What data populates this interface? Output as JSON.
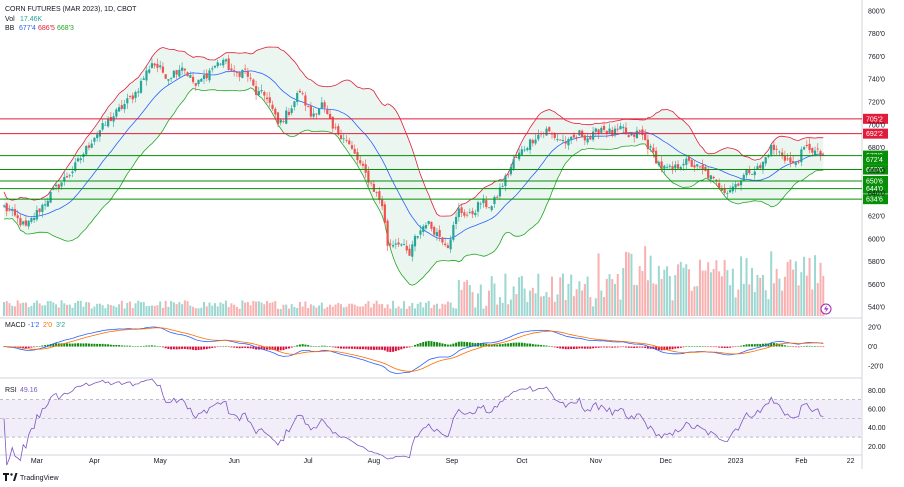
{
  "header": {
    "title": "CORN FUTURES (MAR 2023), 1D, CBOT",
    "vol_label": "Vol",
    "vol_value": "17.46K",
    "bb_label": "BB",
    "bb_values": [
      "677'4",
      "686'5",
      "668'3"
    ]
  },
  "macd": {
    "label": "MACD",
    "values": [
      "-1'2",
      "2'0",
      "3'2"
    ]
  },
  "rsi": {
    "label": "RSI",
    "value": "49.16"
  },
  "branding": {
    "logo_text": "TradingView"
  },
  "colors": {
    "up": "#26a69a",
    "down": "#ef5350",
    "bb_upper": "#e0203c",
    "bb_lower": "#23a623",
    "bb_basis": "#2962ff",
    "bb_fill": "#e6f4ee",
    "support": "#078f07",
    "resistance": "#e31b3a",
    "macd_line": "#2962ff",
    "signal_line": "#ff6d00",
    "rsi_line": "#7e57c2"
  },
  "chart_data": {
    "type": "candlestick",
    "symbol": "CORN FUTURES (MAR 2023)",
    "interval": "1D",
    "x_ticks": [
      "Mar",
      "Apr",
      "May",
      "Jun",
      "Jul",
      "Aug",
      "Sep",
      "Oct",
      "Nov",
      "Dec",
      "2023",
      "Feb",
      "22"
    ],
    "price_axis_ticks": [
      "800'0",
      "780'0",
      "760'0",
      "740'0",
      "720'0",
      "700'0",
      "680'0",
      "660'0",
      "640'0",
      "620'0",
      "600'0",
      "580'0",
      "560'0",
      "540'0"
    ],
    "ylim": [
      534,
      806
    ],
    "price_range": [
      565,
      775
    ],
    "current_price": "672'4",
    "horizontal_levels": [
      {
        "label": "705'2",
        "value": 705.25,
        "kind": "resistance"
      },
      {
        "label": "692'2",
        "value": 692.25,
        "kind": "resistance"
      },
      {
        "label": "673'0",
        "value": 673.0,
        "kind": "support"
      },
      {
        "label": "660'6",
        "value": 660.75,
        "kind": "support"
      },
      {
        "label": "650'6",
        "value": 650.75,
        "kind": "support"
      },
      {
        "label": "644'0",
        "value": 644.0,
        "kind": "support"
      },
      {
        "label": "634'6",
        "value": 634.75,
        "kind": "support"
      }
    ],
    "close_path": [
      [
        0,
        628
      ],
      [
        8,
        610
      ],
      [
        18,
        642
      ],
      [
        25,
        660
      ],
      [
        33,
        690
      ],
      [
        40,
        708
      ],
      [
        48,
        728
      ],
      [
        54,
        755
      ],
      [
        60,
        742
      ],
      [
        65,
        752
      ],
      [
        70,
        734
      ],
      [
        76,
        750
      ],
      [
        80,
        757
      ],
      [
        84,
        744
      ],
      [
        88,
        748
      ],
      [
        92,
        728
      ],
      [
        96,
        725
      ],
      [
        100,
        700
      ],
      [
        104,
        712
      ],
      [
        108,
        730
      ],
      [
        112,
        708
      ],
      [
        116,
        718
      ],
      [
        120,
        696
      ],
      [
        124,
        690
      ],
      [
        130,
        665
      ],
      [
        134,
        648
      ],
      [
        138,
        630
      ],
      [
        140,
        595
      ],
      [
        144,
        598
      ],
      [
        148,
        585
      ],
      [
        150,
        600
      ],
      [
        154,
        615
      ],
      [
        158,
        605
      ],
      [
        162,
        595
      ],
      [
        166,
        625
      ],
      [
        170,
        620
      ],
      [
        174,
        632
      ],
      [
        178,
        628
      ],
      [
        182,
        648
      ],
      [
        186,
        668
      ],
      [
        190,
        680
      ],
      [
        194,
        690
      ],
      [
        198,
        695
      ],
      [
        202,
        688
      ],
      [
        206,
        684
      ],
      [
        210,
        692
      ],
      [
        214,
        688
      ],
      [
        218,
        698
      ],
      [
        222,
        692
      ],
      [
        226,
        696
      ],
      [
        228,
        688
      ],
      [
        232,
        694
      ],
      [
        236,
        678
      ],
      [
        240,
        662
      ],
      [
        244,
        660
      ],
      [
        248,
        668
      ],
      [
        252,
        664
      ],
      [
        256,
        658
      ],
      [
        260,
        648
      ],
      [
        264,
        642
      ],
      [
        268,
        650
      ],
      [
        272,
        660
      ],
      [
        276,
        662
      ],
      [
        280,
        680
      ],
      [
        284,
        674
      ],
      [
        288,
        664
      ],
      [
        292,
        678
      ],
      [
        294,
        680
      ],
      [
        296,
        676
      ],
      [
        300,
        672
      ]
    ],
    "volume_range": [
      0,
      85
    ],
    "volume_ticks_note": "volume bars shown in lower area of price pane",
    "macd_axis_ticks": [
      "20'0",
      "0'0",
      "-20'0"
    ],
    "macd_ylim": [
      -30,
      25
    ],
    "rsi_axis_ticks": [
      "80.00",
      "60.00",
      "40.00",
      "20.00"
    ],
    "rsi_ylim": [
      14,
      90
    ],
    "rsi_bands": [
      70,
      30
    ]
  }
}
